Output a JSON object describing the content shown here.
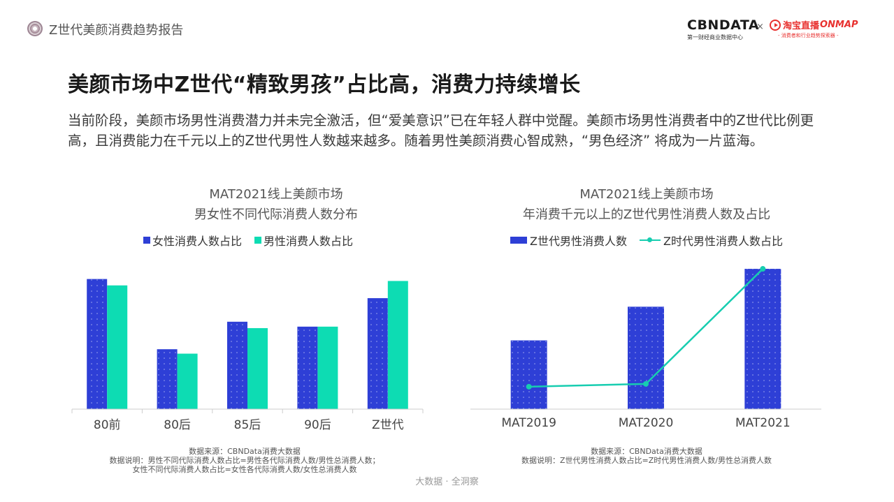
{
  "header": {
    "report_title": "Z世代美颜消费趋势报告",
    "cbn_brand": "CBNDATA",
    "cbn_subtitle": "第一财经商业数据中心",
    "times": "×",
    "taobao_brand": "淘宝直播",
    "taobao_onmap": "ONMAP",
    "taobao_subtitle": "- 消费者和行业趋势探索器 -"
  },
  "headline": "美颜市场中Z世代“精致男孩”占比高，消费力持续增长",
  "intro": "当前阶段，美颜市场男性消费潜力并未完全激活，但“爱美意识”已在年轻人群中觉醒。美颜市场男性消费者中的Z世代比例更高，且消费能力在千元以上的Z世代男性人数越来越多。随着男性美颜消费心智成熟，“男色经济” 将成为一片蓝海。",
  "colors": {
    "blue": "#2e3fd6",
    "teal": "#0ddcb3",
    "line": "#17cdb0"
  },
  "chart_data": [
    {
      "type": "bar",
      "title_line1": "MAT2021线上美颜市场",
      "title_line2": "男女性不同代际消费人数分布",
      "categories": [
        "80前",
        "80后",
        "85后",
        "90后",
        "Z世代"
      ],
      "series": [
        {
          "name": "女性消费人数占比",
          "values": [
            26.5,
            12.2,
            17.8,
            16.8,
            22.6
          ]
        },
        {
          "name": "男性消费人数占比",
          "values": [
            25.2,
            11.3,
            16.5,
            16.8,
            26.1
          ]
        }
      ],
      "ylim": [
        0,
        30
      ],
      "grid": false,
      "legend": "top-center",
      "source": "数据来源：CBNData消费大数据",
      "notes_line1": "数据说明：男性不同代际消费人数占比=男性各代际消费人数/男性总消费人数；",
      "notes_line2": "女性不同代际消费人数占比=女性各代际消费人数/女性总消费人数"
    },
    {
      "type": "bar",
      "title_line1": "MAT2021线上美颜市场",
      "title_line2": "年消费千元以上的Z世代男性消费人数及占比",
      "categories": [
        "MAT2019",
        "MAT2020",
        "MAT2021"
      ],
      "series": [
        {
          "name": "Z世代男性消费人数",
          "type": "bar",
          "values": [
            49,
            73,
            100
          ]
        },
        {
          "name": "Z时代男性消费人数占比",
          "type": "line",
          "values": [
            16,
            18,
            100
          ]
        }
      ],
      "ylim": [
        0,
        105
      ],
      "grid": false,
      "legend": "top-center",
      "source": "数据来源：CBNData消费大数据",
      "notes_line1": "数据说明：Z世代男性消费人数占比=Z时代男性消费人数/男性总消费人数"
    }
  ],
  "footer": "大数据 · 全洞察"
}
